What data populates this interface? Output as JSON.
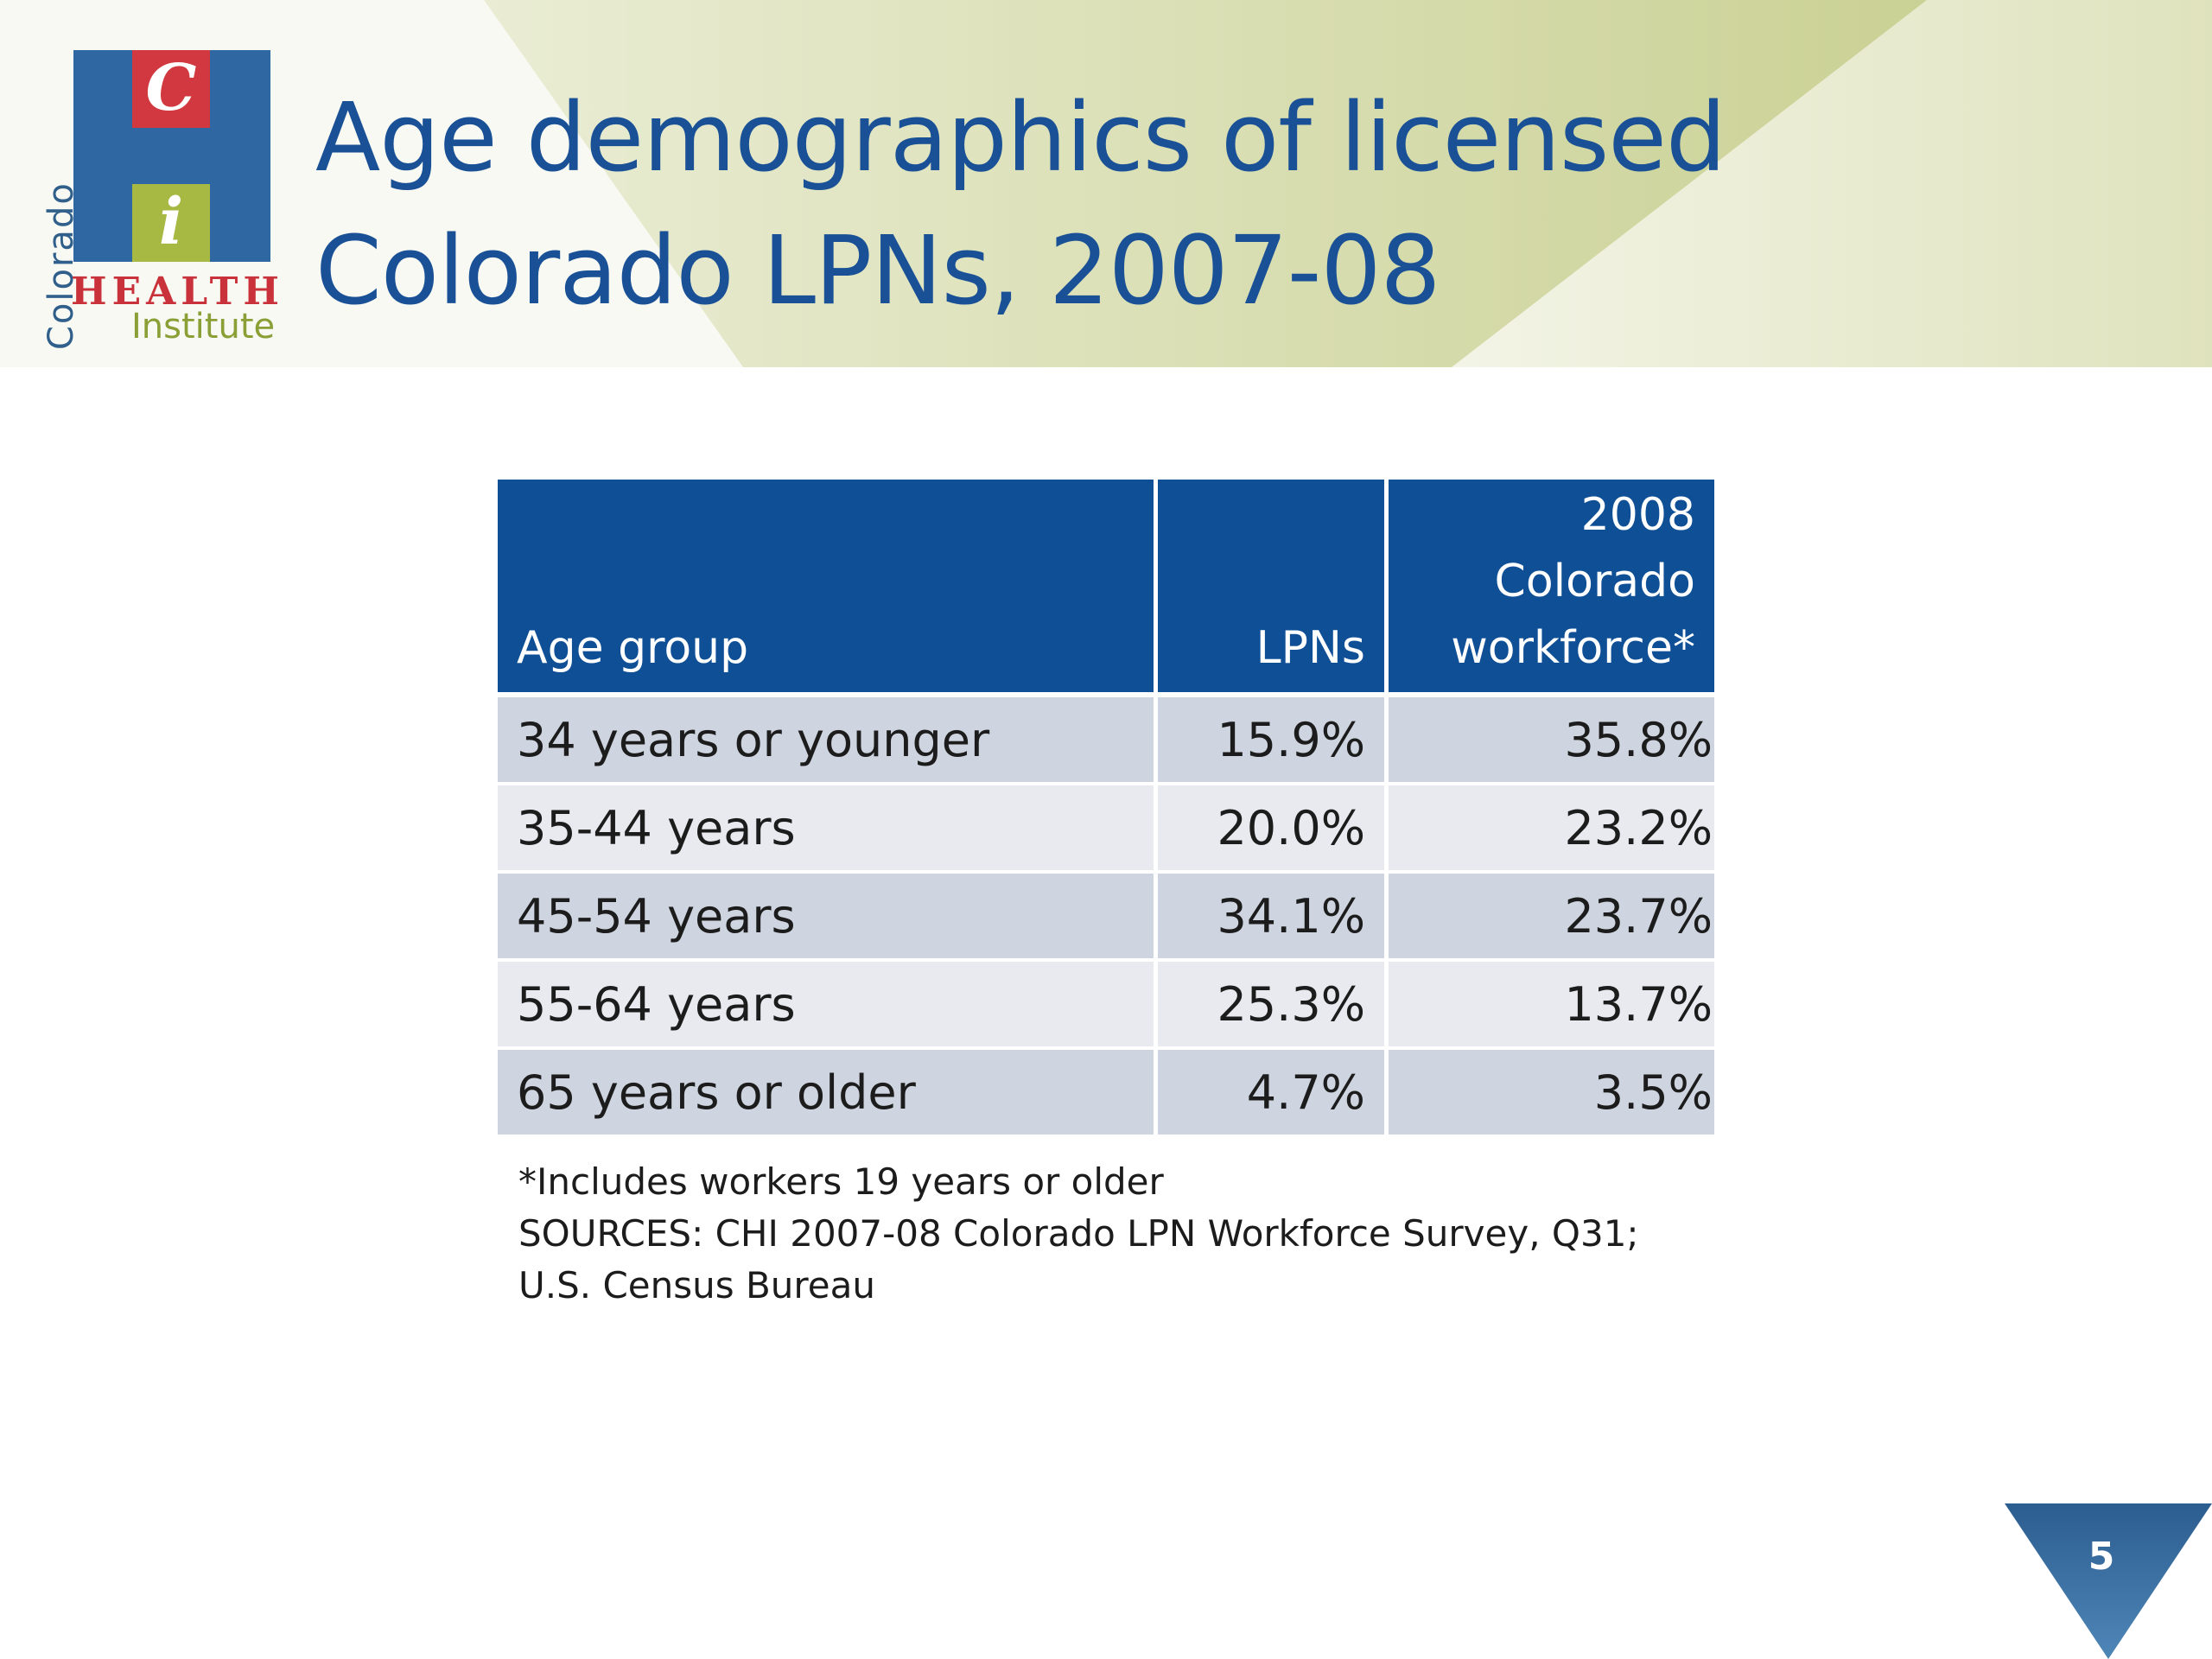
{
  "logo": {
    "vertical_text": "Colorado",
    "letter_c": "C",
    "letter_i": "i",
    "health": "HEALTH",
    "institute": "Institute"
  },
  "title": {
    "line1": "Age demographics of licensed",
    "line2": "Colorado LPNs, 2007-08"
  },
  "table": {
    "headers": {
      "age_group": "Age group",
      "lpns": "LPNs",
      "workforce_line1": "2008",
      "workforce_line2": "Colorado",
      "workforce_line3": "workforce*"
    },
    "rows": [
      {
        "age": "34 years or younger",
        "lpns": "15.9%",
        "workforce": "35.8%"
      },
      {
        "age": "35-44 years",
        "lpns": "20.0%",
        "workforce": "23.2%"
      },
      {
        "age": "45-54 years",
        "lpns": "34.1%",
        "workforce": "23.7%"
      },
      {
        "age": "55-64 years",
        "lpns": "25.3%",
        "workforce": "13.7%"
      },
      {
        "age": "65 years or older",
        "lpns": "4.7%",
        "workforce": "3.5%"
      }
    ]
  },
  "footnote": {
    "line1": "*Includes workers 19 years or older",
    "line2": "SOURCES: CHI 2007-08 Colorado LPN Workforce Survey,  Q31;",
    "line3": "U.S. Census Bureau"
  },
  "page_number": "5",
  "colors": {
    "title_blue": "#1a5196",
    "header_blue": "#0f4f96",
    "row_dark": "#cfd5e0",
    "row_light": "#e8eaef",
    "logo_red": "#d2383f",
    "logo_green": "#a7b843"
  }
}
